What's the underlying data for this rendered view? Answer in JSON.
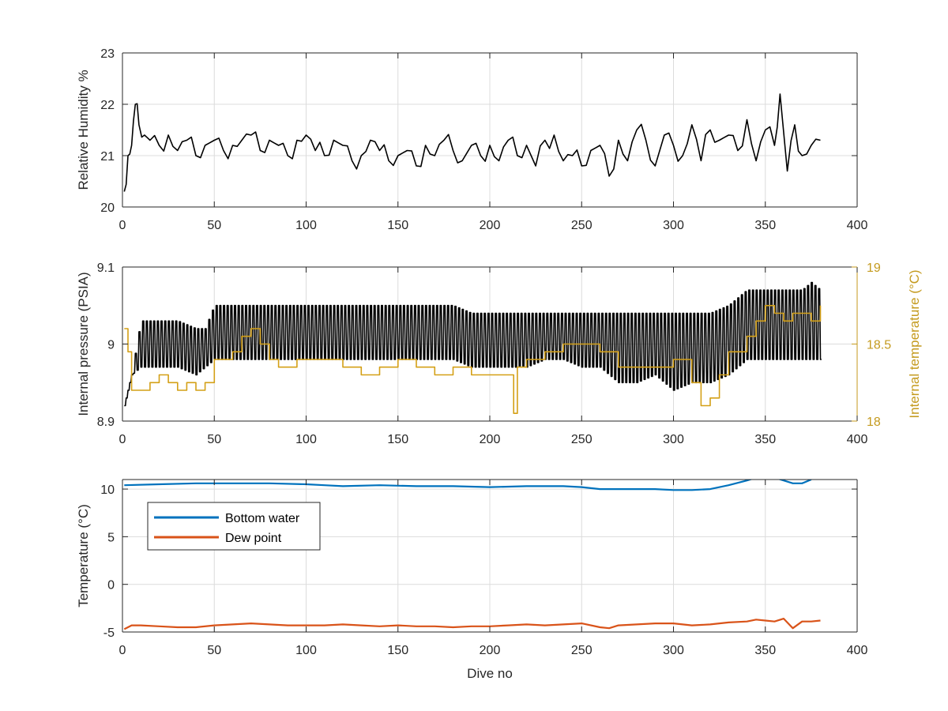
{
  "colors": {
    "black": "#000000",
    "axis_right": "#C49A1E",
    "pressure_line": "#000000",
    "internal_temp_line": "#D4A017",
    "bottom_water": "#0072BD",
    "dew_point": "#D95319",
    "grid": "#dcdcdc"
  },
  "chart_data": [
    {
      "type": "line",
      "xlabel": "",
      "ylabel": "Relative Humidity %",
      "xlim": [
        0,
        400
      ],
      "ylim": [
        20,
        23
      ],
      "xticks": [
        0,
        50,
        100,
        150,
        200,
        250,
        300,
        350,
        400
      ],
      "yticks": [
        20,
        21,
        22,
        23
      ],
      "grid": true,
      "series": [
        {
          "color": "#000000",
          "x": [
            1,
            3,
            5,
            7,
            9,
            12,
            15,
            20,
            25,
            30,
            35,
            40,
            45,
            50,
            55,
            60,
            65,
            70,
            75,
            80,
            85,
            90,
            95,
            100,
            105,
            110,
            115,
            120,
            125,
            130,
            135,
            140,
            145,
            150,
            155,
            160,
            165,
            170,
            175,
            180,
            185,
            190,
            195,
            200,
            205,
            210,
            215,
            220,
            225,
            230,
            235,
            240,
            245,
            250,
            255,
            260,
            265,
            270,
            275,
            280,
            285,
            290,
            295,
            300,
            305,
            310,
            315,
            320,
            325,
            330,
            335,
            340,
            345,
            350,
            355,
            358,
            362,
            366,
            370,
            375,
            380
          ],
          "y": [
            20.3,
            21.0,
            21.2,
            22.0,
            21.6,
            21.4,
            21.3,
            21.2,
            21.4,
            21.1,
            21.3,
            21.0,
            21.2,
            21.3,
            21.1,
            21.2,
            21.3,
            21.4,
            21.1,
            21.3,
            21.2,
            21.0,
            21.3,
            21.4,
            21.1,
            21.0,
            21.3,
            21.2,
            20.9,
            21.0,
            21.3,
            21.1,
            20.9,
            21.0,
            21.1,
            20.8,
            21.2,
            21.0,
            21.3,
            21.1,
            20.9,
            21.2,
            21.0,
            21.2,
            20.9,
            21.3,
            21.0,
            21.2,
            20.8,
            21.3,
            21.4,
            20.9,
            21.0,
            20.8,
            21.1,
            21.2,
            20.6,
            21.3,
            20.9,
            21.5,
            21.3,
            20.8,
            21.4,
            21.2,
            21.0,
            21.6,
            20.9,
            21.5,
            21.3,
            21.4,
            21.1,
            21.7,
            20.9,
            21.5,
            21.2,
            22.2,
            20.7,
            21.6,
            21.0,
            21.2,
            21.3
          ]
        }
      ]
    },
    {
      "type": "line",
      "xlabel": "",
      "ylabel": "Internal pressure (PSIA)",
      "ylabel_right": "Internal temperature (°C)",
      "xlim": [
        0,
        400
      ],
      "ylim": [
        8.9,
        9.1
      ],
      "ylim_right": [
        18,
        19
      ],
      "xticks": [
        0,
        50,
        100,
        150,
        200,
        250,
        300,
        350,
        400
      ],
      "yticks": [
        8.9,
        9,
        9.1
      ],
      "yticks_right": [
        18,
        18.5,
        19
      ],
      "grid": true,
      "series": [
        {
          "axis": "left",
          "color": "#000000",
          "x": [
            1,
            5,
            10,
            20,
            30,
            40,
            45,
            50,
            60,
            70,
            80,
            90,
            100,
            110,
            120,
            130,
            140,
            150,
            160,
            170,
            180,
            190,
            200,
            210,
            220,
            230,
            240,
            250,
            260,
            270,
            280,
            290,
            300,
            310,
            320,
            330,
            340,
            350,
            360,
            370,
            375,
            380
          ],
          "y": [
            8.92,
            8.96,
            9.03,
            9.03,
            9.03,
            9.02,
            9.02,
            9.05,
            9.05,
            9.05,
            9.05,
            9.05,
            9.05,
            9.05,
            9.05,
            9.05,
            9.05,
            9.05,
            9.05,
            9.05,
            9.05,
            9.04,
            9.04,
            9.04,
            9.04,
            9.04,
            9.04,
            9.04,
            9.04,
            9.04,
            9.04,
            9.04,
            9.04,
            9.04,
            9.04,
            9.05,
            9.07,
            9.07,
            9.07,
            9.07,
            9.08,
            9.07
          ],
          "min_y": [
            8.92,
            8.96,
            8.97,
            8.97,
            8.97,
            8.96,
            8.97,
            8.98,
            8.98,
            8.98,
            8.98,
            8.98,
            8.98,
            8.98,
            8.98,
            8.98,
            8.98,
            8.98,
            8.98,
            8.98,
            8.98,
            8.97,
            8.97,
            8.97,
            8.97,
            8.98,
            8.98,
            8.97,
            8.97,
            8.95,
            8.95,
            8.96,
            8.94,
            8.95,
            8.95,
            8.96,
            8.98,
            8.98,
            8.98,
            8.98,
            8.98,
            8.98
          ],
          "oscillating": true
        },
        {
          "axis": "right",
          "color": "#D4A017",
          "x": [
            1,
            3,
            5,
            10,
            15,
            20,
            25,
            30,
            35,
            40,
            45,
            50,
            55,
            60,
            65,
            70,
            75,
            80,
            85,
            90,
            95,
            100,
            110,
            120,
            130,
            140,
            150,
            160,
            170,
            180,
            190,
            200,
            210,
            213,
            215,
            220,
            230,
            240,
            250,
            260,
            270,
            280,
            290,
            300,
            310,
            315,
            320,
            325,
            330,
            340,
            345,
            350,
            355,
            360,
            365,
            370,
            375,
            380
          ],
          "y": [
            18.6,
            18.45,
            18.2,
            18.2,
            18.25,
            18.3,
            18.25,
            18.2,
            18.25,
            18.2,
            18.25,
            18.4,
            18.4,
            18.45,
            18.55,
            18.6,
            18.5,
            18.4,
            18.35,
            18.35,
            18.4,
            18.4,
            18.4,
            18.35,
            18.3,
            18.35,
            18.4,
            18.35,
            18.3,
            18.35,
            18.3,
            18.3,
            18.3,
            18.05,
            18.35,
            18.4,
            18.45,
            18.5,
            18.5,
            18.45,
            18.35,
            18.35,
            18.35,
            18.4,
            18.25,
            18.1,
            18.15,
            18.3,
            18.45,
            18.55,
            18.65,
            18.75,
            18.7,
            18.65,
            18.7,
            18.7,
            18.65,
            18.75
          ]
        }
      ]
    },
    {
      "type": "line",
      "xlabel": "Dive no",
      "ylabel": "Temperature (°C)",
      "xlim": [
        0,
        400
      ],
      "ylim": [
        -5,
        11
      ],
      "xticks": [
        0,
        50,
        100,
        150,
        200,
        250,
        300,
        350,
        400
      ],
      "yticks": [
        -5,
        0,
        5,
        10
      ],
      "grid": true,
      "legend": "top-left",
      "series": [
        {
          "name": "Bottom water",
          "color": "#0072BD",
          "x": [
            1,
            20,
            40,
            60,
            80,
            100,
            110,
            120,
            140,
            160,
            180,
            200,
            220,
            240,
            250,
            260,
            270,
            280,
            290,
            300,
            310,
            320,
            330,
            340,
            345,
            350,
            355,
            360,
            365,
            370,
            375
          ],
          "y": [
            10.4,
            10.5,
            10.6,
            10.6,
            10.6,
            10.5,
            10.4,
            10.3,
            10.4,
            10.3,
            10.3,
            10.2,
            10.3,
            10.3,
            10.2,
            10.0,
            10.0,
            10.0,
            10.0,
            9.9,
            9.9,
            10.0,
            10.4,
            10.9,
            11.2,
            11.3,
            11.2,
            10.9,
            10.6,
            10.6,
            11.0
          ]
        },
        {
          "name": "Dew point",
          "color": "#D95319",
          "x": [
            1,
            5,
            10,
            20,
            30,
            40,
            50,
            60,
            70,
            80,
            90,
            100,
            110,
            120,
            130,
            140,
            150,
            160,
            170,
            180,
            190,
            200,
            210,
            220,
            230,
            240,
            250,
            260,
            265,
            270,
            280,
            290,
            300,
            310,
            320,
            330,
            340,
            345,
            350,
            355,
            360,
            365,
            370,
            375,
            380
          ],
          "y": [
            -4.7,
            -4.3,
            -4.3,
            -4.4,
            -4.5,
            -4.5,
            -4.3,
            -4.2,
            -4.1,
            -4.2,
            -4.3,
            -4.3,
            -4.3,
            -4.2,
            -4.3,
            -4.4,
            -4.3,
            -4.4,
            -4.4,
            -4.5,
            -4.4,
            -4.4,
            -4.3,
            -4.2,
            -4.3,
            -4.2,
            -4.1,
            -4.5,
            -4.6,
            -4.3,
            -4.2,
            -4.1,
            -4.1,
            -4.3,
            -4.2,
            -4.0,
            -3.9,
            -3.7,
            -3.8,
            -3.9,
            -3.6,
            -4.6,
            -3.9,
            -3.9,
            -3.8
          ]
        }
      ]
    }
  ]
}
